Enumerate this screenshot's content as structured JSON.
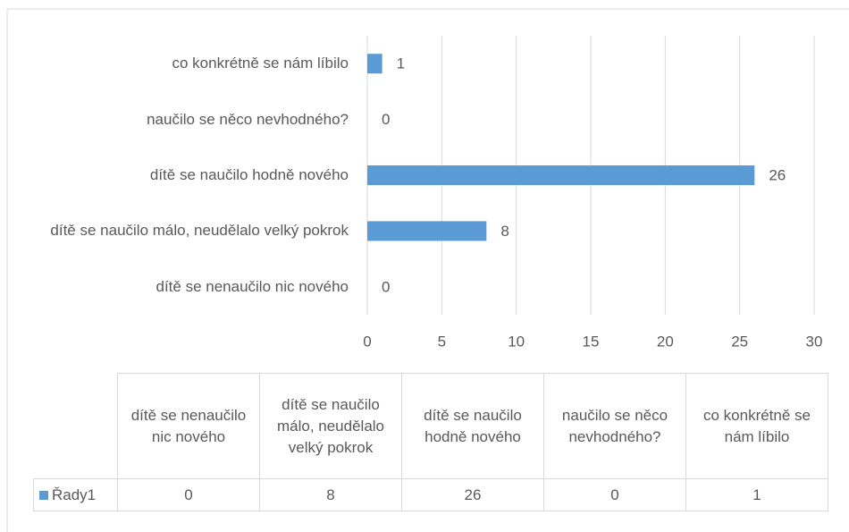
{
  "chart_data": {
    "type": "bar",
    "orientation": "horizontal",
    "categories": [
      "dítě se nenaučilo nic nového",
      "dítě se naučilo málo, neudělalo velký pokrok",
      "dítě se naučilo hodně nového",
      "naučilo se něco nevhodného?",
      "co konkrétně se nám líbilo"
    ],
    "series": [
      {
        "name": "Řady1",
        "color": "#5b9bd5",
        "values": [
          0,
          8,
          26,
          0,
          1
        ]
      }
    ],
    "xlim": [
      0,
      30
    ],
    "xticks": [
      0,
      5,
      10,
      15,
      20,
      25,
      30
    ],
    "grid": true,
    "data_table": true
  }
}
